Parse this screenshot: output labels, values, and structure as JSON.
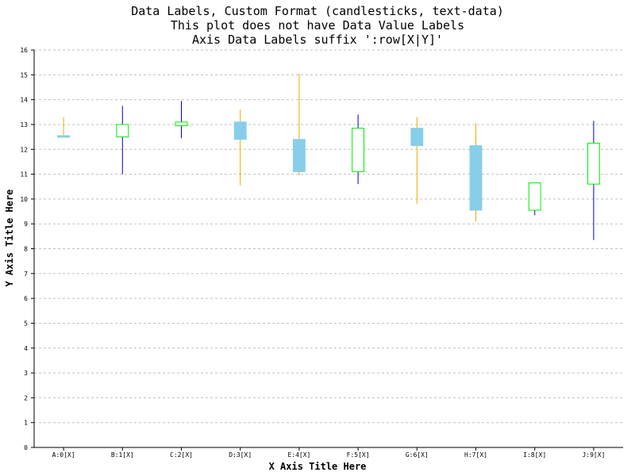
{
  "chart_data": {
    "type": "candlestick",
    "title_lines": [
      "Data Labels, Custom Format (candlesticks, text-data)",
      "This plot does not have Data Value Labels",
      "Axis Data Labels suffix ':row[X|Y]'"
    ],
    "xlabel": "X Axis Title Here",
    "ylabel": "Y Axis Title Here",
    "ylim": [
      0,
      16
    ],
    "y_ticks": [
      0,
      1,
      2,
      3,
      4,
      5,
      6,
      7,
      8,
      9,
      10,
      11,
      12,
      13,
      14,
      15,
      16
    ],
    "grid": "horizontal dashed",
    "categories": [
      "A:0[X]",
      "B:1[X]",
      "C:2[X]",
      "D:3[X]",
      "E:4[X]",
      "F:5[X]",
      "G:6[X]",
      "H:7[X]",
      "I:8[X]",
      "J:9[X]"
    ],
    "candles": [
      {
        "open": 12.55,
        "high": 13.3,
        "low": 12.5,
        "close": 12.5
      },
      {
        "open": 12.5,
        "high": 13.75,
        "low": 11.0,
        "close": 13.0
      },
      {
        "open": 12.95,
        "high": 13.95,
        "low": 12.45,
        "close": 13.1
      },
      {
        "open": 13.1,
        "high": 13.6,
        "low": 10.55,
        "close": 12.4
      },
      {
        "open": 12.4,
        "high": 15.05,
        "low": 10.95,
        "close": 11.1
      },
      {
        "open": 11.1,
        "high": 13.4,
        "low": 10.6,
        "close": 12.85
      },
      {
        "open": 12.85,
        "high": 13.3,
        "low": 9.8,
        "close": 12.15
      },
      {
        "open": 12.15,
        "high": 13.05,
        "low": 9.1,
        "close": 9.55
      },
      {
        "open": 9.55,
        "high": 10.65,
        "low": 9.35,
        "close": 10.65
      },
      {
        "open": 10.6,
        "high": 13.15,
        "low": 8.35,
        "close": 12.25
      }
    ],
    "colors": {
      "up_border": "#00ee00",
      "down_fill": "#87ceeb",
      "up_wick": "#0000c0",
      "down_wick": "#eeaa00",
      "grid": "#c0c0c0",
      "axis": "#000000"
    }
  }
}
